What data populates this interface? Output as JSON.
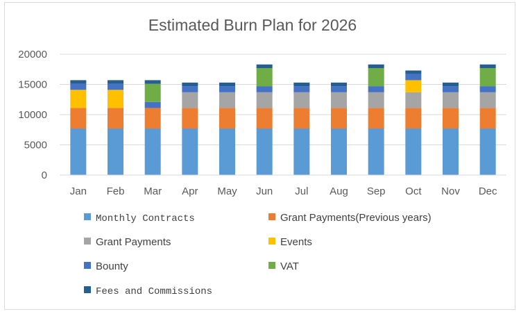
{
  "chart_data": {
    "type": "bar",
    "stacked": true,
    "title": "Estimated Burn Plan for 2026",
    "xlabel": "",
    "ylabel": "",
    "ylim": [
      0,
      20000
    ],
    "yticks": [
      "0",
      "5000",
      "10000",
      "15000",
      "20000"
    ],
    "grid": true,
    "legend_position": "bottom",
    "categories": [
      "Jan",
      "Feb",
      "Mar",
      "Apr",
      "May",
      "Jun",
      "Jul",
      "Aug",
      "Sep",
      "Oct",
      "Nov",
      "Dec"
    ],
    "series": [
      {
        "name": "Monthly Contracts",
        "color": "#5b9bd5",
        "values": [
          7700,
          7700,
          7700,
          7700,
          7700,
          7700,
          7700,
          7700,
          7700,
          7700,
          7700,
          7700
        ]
      },
      {
        "name": "Grant Payments(Previous years)",
        "color": "#ed7d31",
        "values": [
          3400,
          3400,
          3400,
          3400,
          3400,
          3400,
          3400,
          3400,
          3400,
          3400,
          3400,
          3400
        ]
      },
      {
        "name": "Grant Payments",
        "color": "#a5a5a5",
        "values": [
          0,
          0,
          0,
          2600,
          2600,
          2600,
          2600,
          2600,
          2600,
          2600,
          2600,
          2600
        ]
      },
      {
        "name": "Events",
        "color": "#ffc000",
        "values": [
          3000,
          3000,
          0,
          0,
          0,
          0,
          0,
          0,
          0,
          2000,
          0,
          0
        ]
      },
      {
        "name": "Bounty",
        "color": "#4472c4",
        "values": [
          1000,
          1000,
          1000,
          1000,
          1000,
          1000,
          1000,
          1000,
          1000,
          1000,
          1000,
          1000
        ]
      },
      {
        "name": "VAT",
        "color": "#70ad47",
        "values": [
          0,
          0,
          3000,
          0,
          0,
          3000,
          0,
          0,
          3000,
          0,
          0,
          3000
        ]
      },
      {
        "name": "Fees and Commissions",
        "color": "#255e91",
        "values": [
          600,
          600,
          600,
          600,
          600,
          600,
          600,
          600,
          600,
          600,
          600,
          600
        ]
      }
    ]
  }
}
